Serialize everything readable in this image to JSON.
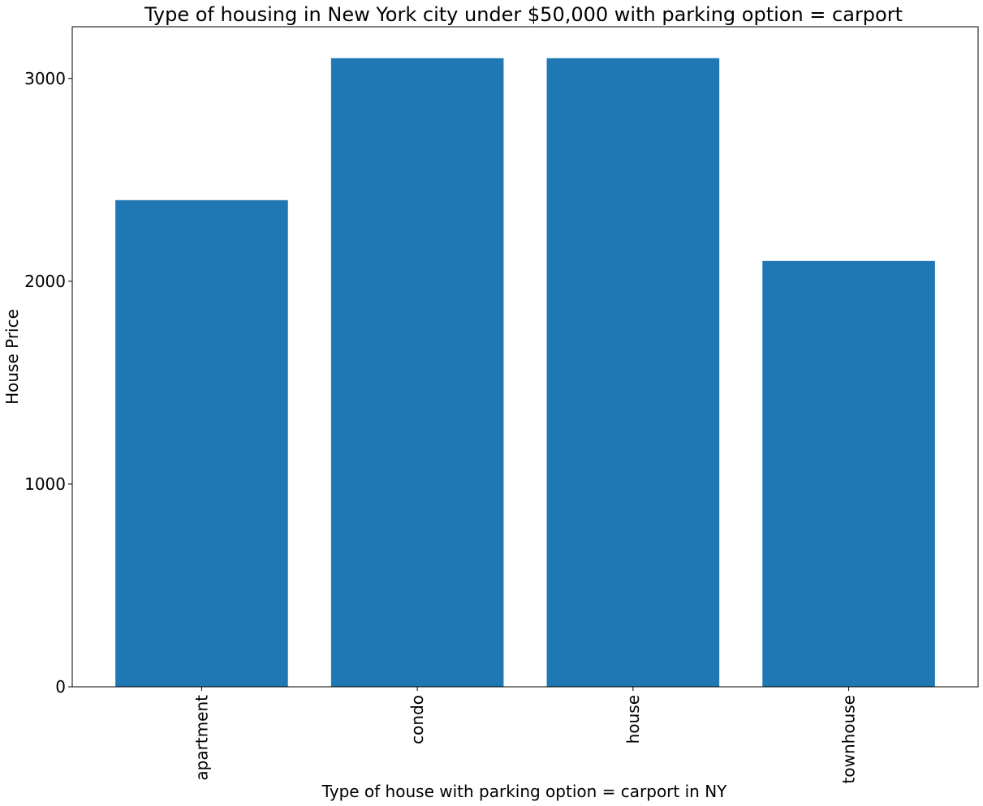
{
  "chart_data": {
    "type": "bar",
    "title": "Type of housing in New York city under $50,000 with parking option = carport",
    "xlabel": "Type of house with parking option = carport in NY",
    "ylabel": "House Price",
    "categories": [
      "apartment",
      "condo",
      "house",
      "townhouse"
    ],
    "values": [
      2400,
      3100,
      3100,
      2100
    ],
    "ylim": [
      0,
      3255
    ],
    "yticks": [
      0,
      1000,
      2000,
      3000
    ],
    "grid": false,
    "bar_color": "#1f77b4"
  }
}
